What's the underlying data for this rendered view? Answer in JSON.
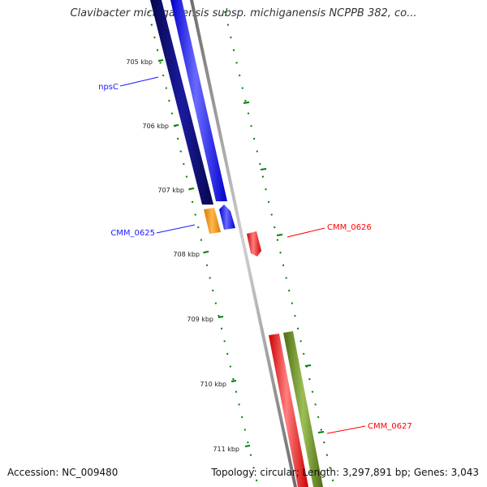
{
  "header": {
    "title": "Clavibacter michiganensis subsp. michiganensis NCPPB 382, co..."
  },
  "footer": {
    "accession": "Accession: NC_009480",
    "topology": "Topology: circular; Length: 3,297,891 bp; Genes: 3,043"
  },
  "ticks": [
    {
      "label": "705 kbp"
    },
    {
      "label": "706 kbp"
    },
    {
      "label": "707 kbp"
    },
    {
      "label": "708 kbp"
    },
    {
      "label": "709 kbp"
    },
    {
      "label": "710 kbp"
    },
    {
      "label": "711 kbp"
    }
  ],
  "genes": [
    {
      "label": "npsC",
      "color": "#1a1aff"
    },
    {
      "label": "CMM_0625",
      "color": "#1a1aff"
    },
    {
      "label": "CMM_0626",
      "color": "#ff0000"
    },
    {
      "label": "CMM_0627",
      "color": "#ff0000"
    }
  ],
  "colors": {
    "dark_blue": "#0b0b7a",
    "blue": "#1a1aff",
    "orange": "#ff9900",
    "red": "#ff0000",
    "olive": "#6b8e23",
    "backbone": "#888888",
    "tick": "#008000"
  }
}
